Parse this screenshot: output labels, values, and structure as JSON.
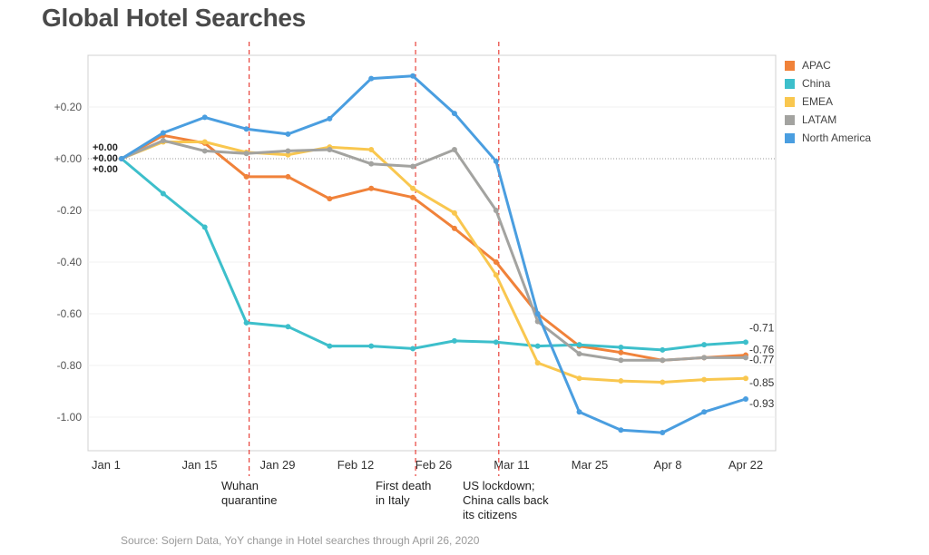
{
  "title": "Global Hotel Searches",
  "source": "Source: Sojern Data, YoY change in Hotel searches through April 26, 2020",
  "annotations": [
    {
      "text": "Wuhan\nquarantine",
      "at_index": 3
    },
    {
      "text": "First death\nin Italy",
      "at_index": 7
    },
    {
      "text": "US lockdown;\nChina calls back\nits citizens",
      "at_index": 9
    }
  ],
  "chart_data": {
    "type": "line",
    "title": "Global Hotel Searches",
    "xlabel": "",
    "ylabel": "",
    "ylim": [
      -1.13,
      0.4
    ],
    "yticks": [
      0.2,
      0.0,
      -0.2,
      -0.4,
      -0.6,
      -0.8,
      -1.0
    ],
    "ytick_labels": [
      "+0.20",
      "+0.00",
      "-0.20",
      "-0.40",
      "-0.60",
      "-0.80",
      "-1.00"
    ],
    "x_ticks": [
      "Jan 1",
      "Jan 15",
      "Jan 29",
      "Feb 12",
      "Feb 26",
      "Mar 11",
      "Mar 25",
      "Apr 8",
      "Apr 22"
    ],
    "start_labels": [
      "+0.00",
      "+0.00",
      "+0.00"
    ],
    "event_lines_at_index": [
      3,
      7,
      9
    ],
    "series": [
      {
        "name": "APAC",
        "color": "#F0823A",
        "values": [
          0.0,
          0.09,
          0.06,
          -0.07,
          -0.07,
          -0.155,
          -0.115,
          -0.15,
          -0.27,
          -0.4,
          -0.6,
          -0.725,
          -0.75,
          -0.78,
          -0.77,
          -0.76
        ],
        "end_label": "-0.76"
      },
      {
        "name": "China",
        "color": "#3DBFCB",
        "values": [
          0.0,
          -0.135,
          -0.265,
          -0.635,
          -0.65,
          -0.725,
          -0.725,
          -0.735,
          -0.705,
          -0.71,
          -0.725,
          -0.72,
          -0.73,
          -0.74,
          -0.72,
          -0.71
        ],
        "end_label": "-0.71"
      },
      {
        "name": "EMEA",
        "color": "#F9C74F",
        "values": [
          0.0,
          0.065,
          0.065,
          0.025,
          0.015,
          0.045,
          0.035,
          -0.115,
          -0.21,
          -0.45,
          -0.79,
          -0.85,
          -0.86,
          -0.865,
          -0.855,
          -0.85
        ],
        "end_label": "-0.85"
      },
      {
        "name": "LATAM",
        "color": "#A3A3A0",
        "values": [
          0.0,
          0.07,
          0.03,
          0.02,
          0.03,
          0.035,
          -0.02,
          -0.03,
          0.035,
          -0.2,
          -0.63,
          -0.755,
          -0.78,
          -0.78,
          -0.77,
          -0.77
        ],
        "end_label": "-0.77"
      },
      {
        "name": "North America",
        "color": "#4A9EE0",
        "values": [
          0.0,
          0.1,
          0.16,
          0.115,
          0.095,
          0.155,
          0.31,
          0.32,
          0.175,
          -0.01,
          -0.6,
          -0.98,
          -1.05,
          -1.06,
          -0.98,
          -0.93
        ],
        "end_label": "-0.93"
      }
    ]
  }
}
